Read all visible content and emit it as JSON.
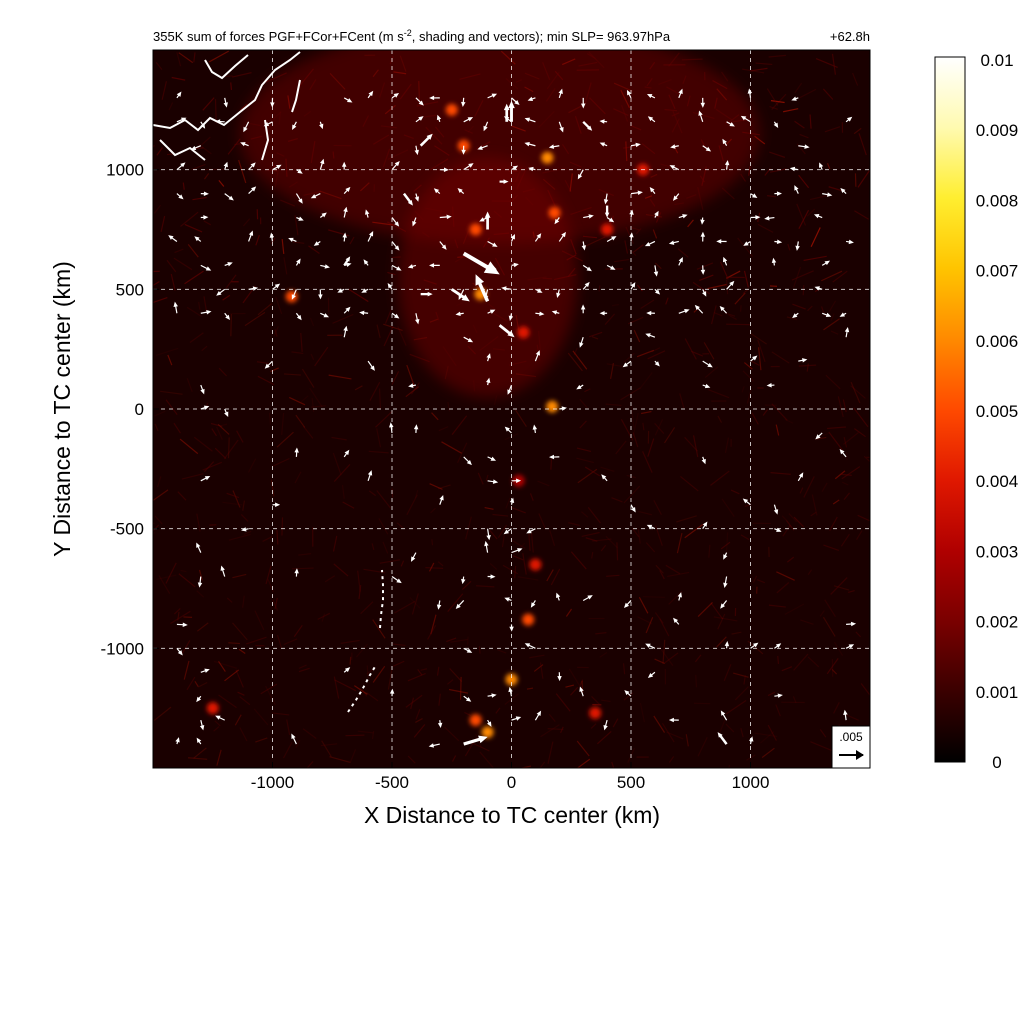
{
  "chart_data": {
    "type": "heatmap",
    "title": "355K sum of forces PGF+FCor+FCent (m s",
    "title_sup": "-2",
    "title_rest": ", shading and vectors); min SLP= 963.97hPa",
    "time_label": "+62.8h",
    "xlabel": "X Distance to TC center (km)",
    "ylabel": "Y Distance to TC center (km)",
    "xlim": [
      -1500,
      1500
    ],
    "ylim": [
      -1500,
      1500
    ],
    "x_ticks": [
      -1000,
      -500,
      0,
      500,
      1000
    ],
    "y_ticks": [
      1000,
      500,
      0,
      -500,
      -1000
    ],
    "grid": true,
    "colorbar": {
      "min": 0,
      "max": 0.01,
      "tick_labels": [
        "0.01",
        "0.009",
        "0.008",
        "0.007",
        "0.006",
        "0.005",
        "0.004",
        "0.003",
        "0.002",
        "0.001",
        "0"
      ],
      "colors": [
        "#000000",
        "#3a0000",
        "#7a0000",
        "#b00000",
        "#e01800",
        "#ff4a00",
        "#ff8a00",
        "#ffc400",
        "#ffee30",
        "#fffab0",
        "#ffffff"
      ]
    },
    "reference_vector": {
      "label": ".005",
      "magnitude": 0.005
    },
    "hotspots": [
      {
        "x": -150,
        "y": 750,
        "v": 0.0045
      },
      {
        "x": -130,
        "y": 480,
        "v": 0.006
      },
      {
        "x": -250,
        "y": 1250,
        "v": 0.005
      },
      {
        "x": -200,
        "y": 1100,
        "v": 0.0045
      },
      {
        "x": 150,
        "y": 1050,
        "v": 0.006
      },
      {
        "x": 400,
        "y": 750,
        "v": 0.004
      },
      {
        "x": 550,
        "y": 1000,
        "v": 0.004
      },
      {
        "x": 180,
        "y": 820,
        "v": 0.005
      },
      {
        "x": 170,
        "y": 10,
        "v": 0.006
      },
      {
        "x": 70,
        "y": -880,
        "v": 0.0055
      },
      {
        "x": 0,
        "y": -1130,
        "v": 0.006
      },
      {
        "x": -150,
        "y": -1300,
        "v": 0.005
      },
      {
        "x": -100,
        "y": -1350,
        "v": 0.006
      },
      {
        "x": 350,
        "y": -1270,
        "v": 0.004
      },
      {
        "x": -1250,
        "y": -1250,
        "v": 0.004
      },
      {
        "x": -920,
        "y": 470,
        "v": 0.0045
      },
      {
        "x": 50,
        "y": 320,
        "v": 0.0035
      },
      {
        "x": 100,
        "y": -650,
        "v": 0.0035
      },
      {
        "x": 30,
        "y": -300,
        "v": 0.003
      }
    ],
    "vectors": [
      {
        "x": -200,
        "y": 650,
        "u": 0.006,
        "v": -0.0035
      },
      {
        "x": -100,
        "y": 450,
        "u": -0.002,
        "v": 0.0045
      },
      {
        "x": -250,
        "y": 500,
        "u": 0.003,
        "v": -0.002
      },
      {
        "x": -50,
        "y": 350,
        "u": 0.0025,
        "v": -0.002
      },
      {
        "x": -100,
        "y": 750,
        "u": 0.0,
        "v": 0.003
      },
      {
        "x": -380,
        "y": 1100,
        "u": 0.002,
        "v": 0.002
      },
      {
        "x": 0,
        "y": 1200,
        "u": 0.0,
        "v": 0.0035
      },
      {
        "x": -20,
        "y": 1200,
        "u": 0.0,
        "v": 0.003
      },
      {
        "x": -200,
        "y": -1400,
        "u": 0.004,
        "v": 0.0012
      },
      {
        "x": 900,
        "y": -1400,
        "u": -0.0015,
        "v": 0.002
      },
      {
        "x": 400,
        "y": 850,
        "u": 0.0,
        "v": -0.002
      },
      {
        "x": -450,
        "y": 900,
        "u": 0.0015,
        "v": -0.002
      },
      {
        "x": -700,
        "y": 600,
        "u": 0.001,
        "v": 0.0015
      },
      {
        "x": -380,
        "y": 480,
        "u": 0.002,
        "v": 0.0
      },
      {
        "x": 300,
        "y": 1200,
        "u": 0.0015,
        "v": -0.0015
      },
      {
        "x": -50,
        "y": 950,
        "u": 0.0015,
        "v": 0.0
      }
    ],
    "coastline_label": ""
  }
}
